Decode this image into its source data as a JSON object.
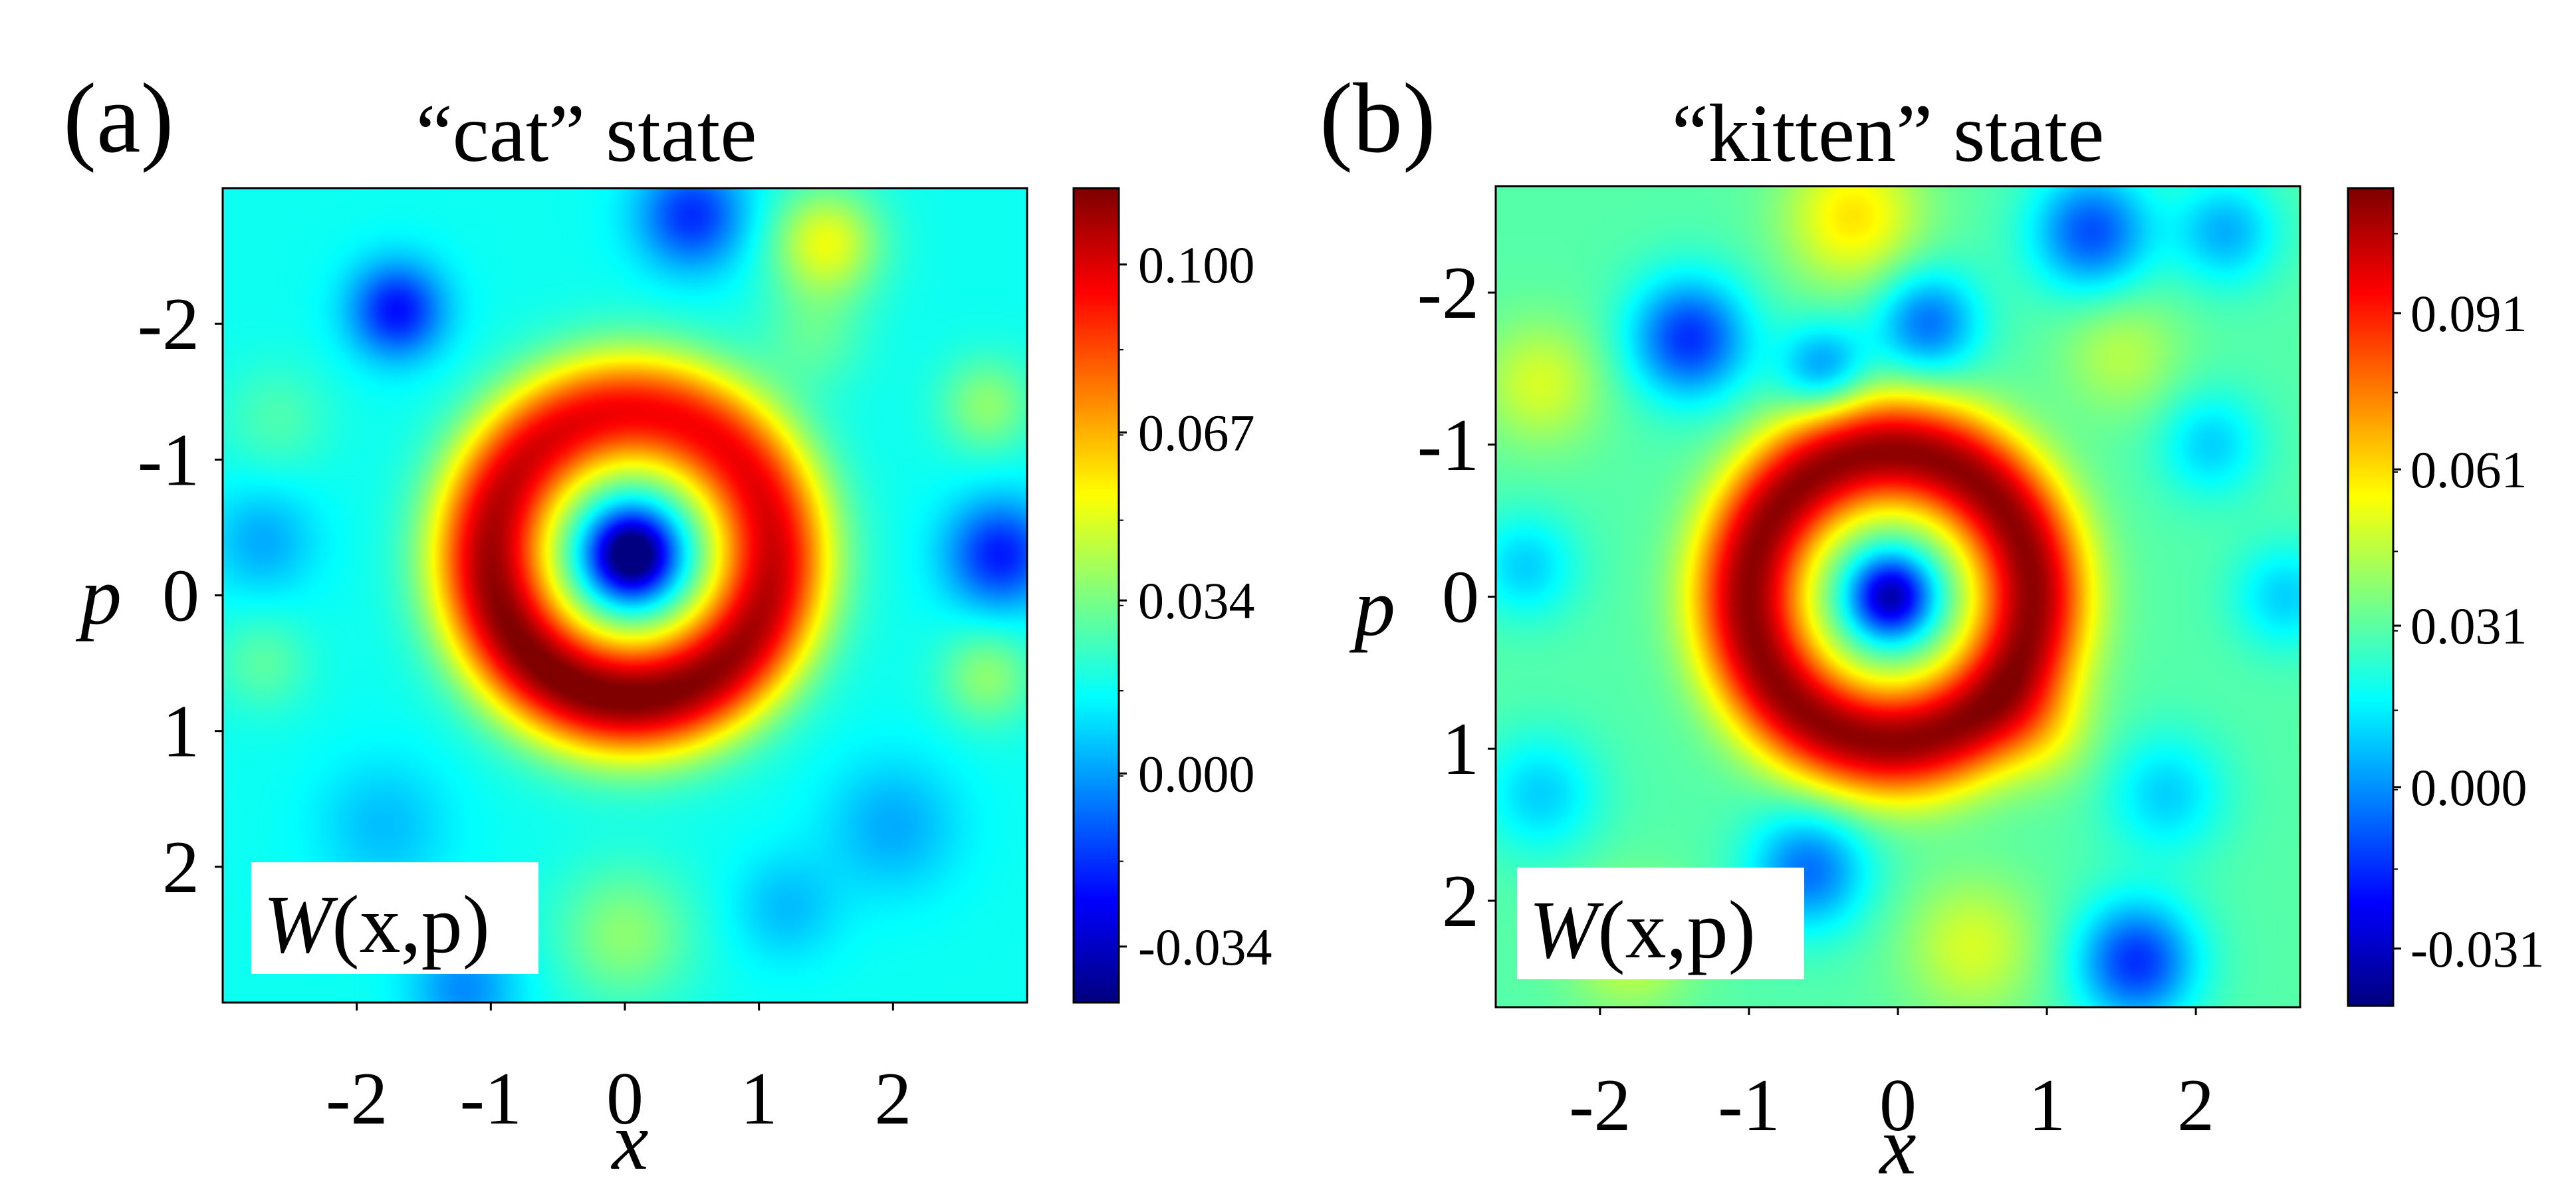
{
  "chart_data": [
    {
      "type": "heatmap",
      "panel_label": "(a)",
      "title": "“cat” state",
      "xlabel": "x",
      "ylabel": "p",
      "xlim": [
        -3,
        3
      ],
      "ylim": [
        -3,
        3
      ],
      "y_axis_inverted": true,
      "x_ticks": [
        "-2",
        "-1",
        "0",
        "1",
        "2"
      ],
      "x_tick_values": [
        -2,
        -1,
        0,
        1,
        2
      ],
      "y_ticks": [
        "-2",
        "-1",
        "0",
        "1",
        "2"
      ],
      "y_tick_values": [
        -2,
        -1,
        0,
        1,
        2
      ],
      "annotation": {
        "prefix": "W",
        "args": "(x,p)"
      },
      "colormap": "jet",
      "colorbar": {
        "range": [
          -0.045,
          0.115
        ],
        "ticks": [
          "-0.034",
          "0.000",
          "0.034",
          "0.067",
          "0.100"
        ],
        "tick_values": [
          -0.034,
          0.0,
          0.034,
          0.067,
          0.1
        ]
      },
      "field": {
        "background": 0.017,
        "ring": {
          "center": [
            0.05,
            -0.3
          ],
          "radius": 1.05,
          "width": 0.45,
          "amplitude": 0.09,
          "angular_mod": 0.12,
          "mod_phase": 1.9
        },
        "center_dip": {
          "center": [
            0.05,
            -0.3
          ],
          "width": 0.32,
          "amplitude": -0.075
        },
        "blobs": [
          {
            "x": -1.7,
            "y": -2.1,
            "s": 0.35,
            "a": -0.04
          },
          {
            "x": 0.5,
            "y": -2.8,
            "s": 0.4,
            "a": -0.035
          },
          {
            "x": 1.5,
            "y": -2.6,
            "s": 0.4,
            "a": 0.035
          },
          {
            "x": 2.8,
            "y": -0.3,
            "s": 0.4,
            "a": -0.038
          },
          {
            "x": 2.7,
            "y": -1.4,
            "s": 0.35,
            "a": 0.02
          },
          {
            "x": 2.7,
            "y": 0.6,
            "s": 0.35,
            "a": 0.02
          },
          {
            "x": -2.7,
            "y": -0.4,
            "s": 0.4,
            "a": -0.015
          },
          {
            "x": -2.7,
            "y": 0.5,
            "s": 0.35,
            "a": 0.012
          },
          {
            "x": -2.6,
            "y": -1.3,
            "s": 0.4,
            "a": 0.01
          },
          {
            "x": 0.0,
            "y": 2.5,
            "s": 0.5,
            "a": 0.02
          },
          {
            "x": 2.0,
            "y": 1.7,
            "s": 0.5,
            "a": -0.015
          },
          {
            "x": -1.2,
            "y": 2.9,
            "s": 0.4,
            "a": -0.02
          },
          {
            "x": -1.8,
            "y": 1.7,
            "s": 0.5,
            "a": -0.012
          },
          {
            "x": 1.2,
            "y": 2.3,
            "s": 0.4,
            "a": -0.012
          },
          {
            "x": 1.4,
            "y": -1.9,
            "s": 0.4,
            "a": 0.012
          }
        ]
      }
    },
    {
      "type": "heatmap",
      "panel_label": "(b)",
      "title": "“kitten” state",
      "xlabel": "x",
      "ylabel": "p",
      "xlim": [
        -2.7,
        2.7
      ],
      "ylim": [
        -2.7,
        2.7
      ],
      "y_axis_inverted": true,
      "x_ticks": [
        "-2",
        "-1",
        "0",
        "1",
        "2"
      ],
      "x_tick_values": [
        -2,
        -1,
        0,
        1,
        2
      ],
      "y_ticks": [
        "-2",
        "-1",
        "0",
        "1",
        "2"
      ],
      "y_tick_values": [
        -2,
        -1,
        0,
        1,
        2
      ],
      "annotation": {
        "prefix": "W",
        "args": "(x,p)"
      },
      "colormap": "jet",
      "colorbar": {
        "range": [
          -0.042,
          0.115
        ],
        "ticks": [
          "-0.031",
          "0.000",
          "0.031",
          "0.061",
          "0.091"
        ],
        "tick_values": [
          -0.031,
          0.0,
          0.031,
          0.061,
          0.091
        ]
      },
      "field": {
        "background": 0.03,
        "ring": {
          "center": [
            -0.05,
            0.0
          ],
          "radius": 0.95,
          "width": 0.38,
          "amplitude": 0.083,
          "angular_mod": 0.0,
          "mod_phase": 0.0
        },
        "center_dip": {
          "center": [
            -0.05,
            0.0
          ],
          "width": 0.28,
          "amplitude": -0.065
        },
        "blobs": [
          {
            "x": -1.4,
            "y": -1.7,
            "s": 0.4,
            "a": -0.045
          },
          {
            "x": -0.5,
            "y": -1.5,
            "s": 0.3,
            "a": -0.03
          },
          {
            "x": 0.2,
            "y": -1.8,
            "s": 0.35,
            "a": -0.035
          },
          {
            "x": -0.3,
            "y": -2.5,
            "s": 0.45,
            "a": 0.03
          },
          {
            "x": 1.3,
            "y": -2.4,
            "s": 0.4,
            "a": -0.04
          },
          {
            "x": 2.2,
            "y": -2.4,
            "s": 0.35,
            "a": -0.025
          },
          {
            "x": 1.5,
            "y": -1.6,
            "s": 0.4,
            "a": 0.015
          },
          {
            "x": 2.1,
            "y": -1.0,
            "s": 0.35,
            "a": -0.02
          },
          {
            "x": -2.4,
            "y": -1.4,
            "s": 0.4,
            "a": 0.02
          },
          {
            "x": -2.5,
            "y": -0.2,
            "s": 0.35,
            "a": -0.02
          },
          {
            "x": 2.6,
            "y": 0.0,
            "s": 0.35,
            "a": -0.02
          },
          {
            "x": -0.6,
            "y": 1.8,
            "s": 0.4,
            "a": -0.035
          },
          {
            "x": 1.6,
            "y": 2.4,
            "s": 0.4,
            "a": -0.045
          },
          {
            "x": 1.8,
            "y": 1.3,
            "s": 0.4,
            "a": -0.02
          },
          {
            "x": 0.5,
            "y": 2.3,
            "s": 0.45,
            "a": 0.02
          },
          {
            "x": -1.8,
            "y": 2.3,
            "s": 0.4,
            "a": 0.02
          },
          {
            "x": -2.4,
            "y": 1.3,
            "s": 0.4,
            "a": -0.02
          },
          {
            "x": 1.0,
            "y": 0.9,
            "s": 0.35,
            "a": 0.015
          }
        ]
      }
    }
  ]
}
